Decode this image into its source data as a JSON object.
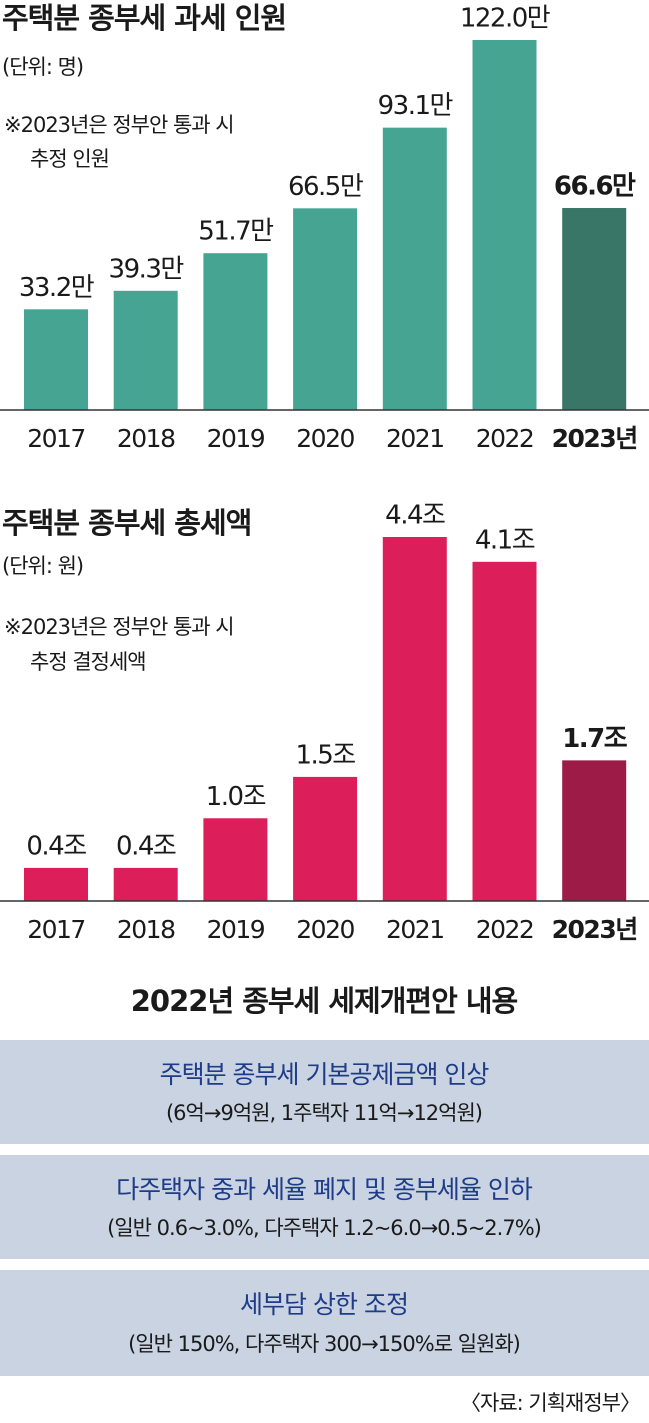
{
  "chart_data": [
    {
      "type": "bar",
      "title": "주택분 종부세 과세 인원",
      "subtitle": "(단위: 명)",
      "note": [
        "※2023년은 정부안 통과 시",
        "추정 인원"
      ],
      "categories": [
        "2017",
        "2018",
        "2019",
        "2020",
        "2021",
        "2022",
        "2023년"
      ],
      "values": [
        33.2,
        39.3,
        51.7,
        66.5,
        93.1,
        122.0,
        66.6
      ],
      "value_labels": [
        "33.2만",
        "39.3만",
        "51.7만",
        "66.5만",
        "93.1만",
        "122.0만",
        "66.6만"
      ],
      "colors": [
        "#45a592",
        "#45a592",
        "#45a592",
        "#45a592",
        "#45a592",
        "#45a592",
        "#3a7668"
      ]
    },
    {
      "type": "bar",
      "title": "주택분 종부세 총세액",
      "subtitle": "(단위: 원)",
      "note": [
        "※2023년은 정부안 통과 시",
        "추정 결정세액"
      ],
      "categories": [
        "2017",
        "2018",
        "2019",
        "2020",
        "2021",
        "2022",
        "2023년"
      ],
      "values": [
        0.4,
        0.4,
        1.0,
        1.5,
        4.4,
        4.1,
        1.7
      ],
      "value_labels": [
        "0.4조",
        "0.4조",
        "1.0조",
        "1.5조",
        "4.4조",
        "4.1조",
        "1.7조"
      ],
      "colors": [
        "#dc1f5a",
        "#dc1f5a",
        "#dc1f5a",
        "#dc1f5a",
        "#dc1f5a",
        "#dc1f5a",
        "#9c1c47"
      ]
    }
  ],
  "reform": {
    "title": "2022년 종부세 세제개편안 내용",
    "items": [
      {
        "heading": "주택분 종부세 기본공제금액 인상",
        "detail": "(6억→9억원, 1주택자 11억→12억원)"
      },
      {
        "heading": "다주택자 중과 세율 폐지 및 종부세율 인하",
        "detail": "(일반 0.6~3.0%, 다주택자 1.2~6.0→0.5~2.7%)"
      },
      {
        "heading": "세부담 상한 조정",
        "detail": "(일반 150%, 다주택자 300→150%로 일원화)"
      }
    ]
  },
  "source": "〈자료: 기획재정부〉"
}
